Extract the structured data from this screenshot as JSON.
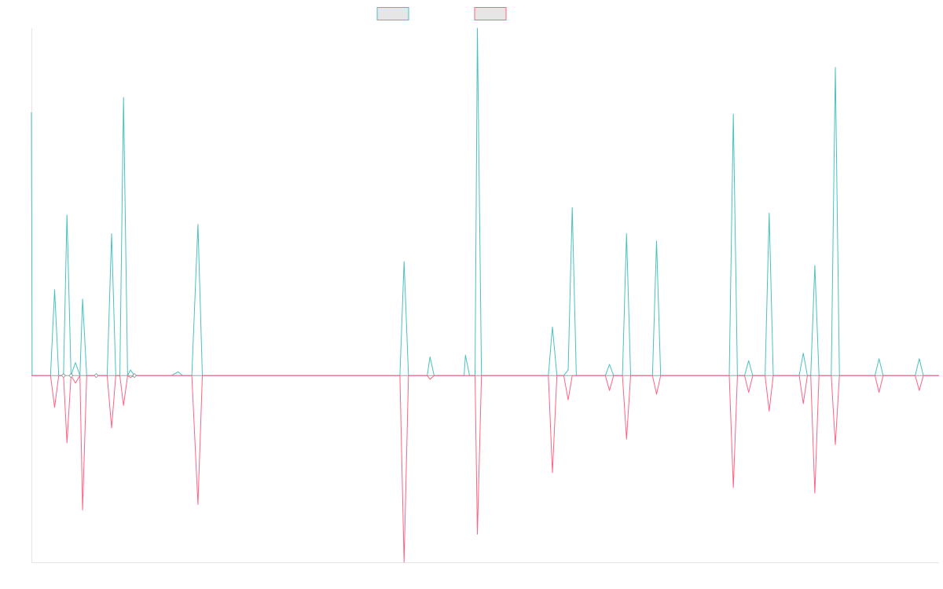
{
  "chart_data": {
    "type": "line",
    "title": "",
    "xlabel": "",
    "ylabel": "",
    "grid": false,
    "legend": "top-center",
    "ylim": [
      -1.0,
      1.86
    ],
    "series": [
      {
        "name": "",
        "color": "#4bc0c0",
        "fill": "#e6e6e6",
        "points": [
          [
            0,
            1.41
          ],
          [
            2,
            0
          ],
          [
            56,
            0
          ],
          [
            68,
            0.46
          ],
          [
            80,
            0
          ],
          [
            94,
            0
          ],
          [
            104,
            0.86
          ],
          [
            116,
            0
          ],
          [
            129,
            0.07
          ],
          [
            142,
            0
          ],
          [
            150,
            0.41
          ],
          [
            162,
            0
          ],
          [
            172,
            0
          ],
          [
            186,
            0
          ],
          [
            190,
            0
          ],
          [
            222,
            0
          ],
          [
            235,
            0.76
          ],
          [
            247,
            0
          ],
          [
            259,
            0
          ],
          [
            270,
            1.49
          ],
          [
            282,
            0
          ],
          [
            290,
            0.03
          ],
          [
            302,
            0
          ],
          [
            383,
            0
          ],
          [
            410,
            0
          ],
          [
            430,
            0.02
          ],
          [
            443,
            0
          ],
          [
            470,
            0
          ],
          [
            488,
            0.81
          ],
          [
            501,
            0
          ],
          [
            1080,
            0
          ],
          [
            1092,
            0.61
          ],
          [
            1105,
            0
          ],
          [
            1160,
            0
          ],
          [
            1168,
            0.1
          ],
          [
            1180,
            0
          ],
          [
            1268,
            0
          ],
          [
            1272,
            0.11
          ],
          [
            1284,
            0
          ],
          [
            1300,
            0
          ],
          [
            1307,
            1.86
          ],
          [
            1319,
            0
          ],
          [
            1515,
            0
          ],
          [
            1527,
            0.26
          ],
          [
            1540,
            0
          ],
          [
            1560,
            0
          ],
          [
            1573,
            0.03
          ],
          [
            1585,
            0.9
          ],
          [
            1597,
            0
          ],
          [
            1682,
            0
          ],
          [
            1694,
            0.06
          ],
          [
            1706,
            0
          ],
          [
            1732,
            0
          ],
          [
            1744,
            0.76
          ],
          [
            1756,
            0
          ],
          [
            1820,
            0
          ],
          [
            1832,
            0.72
          ],
          [
            1844,
            0
          ],
          [
            2045,
            0
          ],
          [
            2057,
            1.4
          ],
          [
            2069,
            0
          ],
          [
            2090,
            0
          ],
          [
            2102,
            0.08
          ],
          [
            2114,
            0
          ],
          [
            2150,
            0
          ],
          [
            2162,
            0.87
          ],
          [
            2174,
            0
          ],
          [
            2250,
            0
          ],
          [
            2262,
            0.12
          ],
          [
            2274,
            0
          ],
          [
            2284,
            0
          ],
          [
            2296,
            0.59
          ],
          [
            2308,
            0
          ],
          [
            2344,
            0
          ],
          [
            2356,
            1.65
          ],
          [
            2368,
            0
          ],
          [
            2472,
            0
          ],
          [
            2484,
            0.09
          ],
          [
            2496,
            0
          ],
          [
            2590,
            0
          ],
          [
            2602,
            0.09
          ],
          [
            2614,
            0
          ],
          [
            2660,
            0
          ]
        ]
      },
      {
        "name": "",
        "color": "#ff6384",
        "fill": "#e6e6e6",
        "points": [
          [
            0,
            0
          ],
          [
            56,
            0
          ],
          [
            68,
            -0.17
          ],
          [
            80,
            0
          ],
          [
            94,
            0
          ],
          [
            104,
            -0.36
          ],
          [
            116,
            0
          ],
          [
            129,
            -0.04
          ],
          [
            142,
            0
          ],
          [
            150,
            -0.72
          ],
          [
            162,
            0
          ],
          [
            172,
            0
          ],
          [
            186,
            0
          ],
          [
            190,
            0
          ],
          [
            222,
            0
          ],
          [
            235,
            -0.28
          ],
          [
            247,
            0
          ],
          [
            259,
            0
          ],
          [
            270,
            -0.16
          ],
          [
            282,
            0
          ],
          [
            290,
            -0.01
          ],
          [
            302,
            0
          ],
          [
            383,
            0
          ],
          [
            410,
            0
          ],
          [
            430,
            0
          ],
          [
            443,
            0
          ],
          [
            470,
            0
          ],
          [
            488,
            -0.69
          ],
          [
            501,
            0
          ],
          [
            1080,
            0
          ],
          [
            1092,
            -1.0
          ],
          [
            1105,
            0
          ],
          [
            1160,
            0
          ],
          [
            1168,
            -0.02
          ],
          [
            1180,
            0
          ],
          [
            1268,
            0
          ],
          [
            1272,
            0
          ],
          [
            1284,
            0
          ],
          [
            1300,
            0
          ],
          [
            1307,
            -0.85
          ],
          [
            1319,
            0
          ],
          [
            1515,
            0
          ],
          [
            1527,
            -0.52
          ],
          [
            1540,
            0
          ],
          [
            1560,
            0
          ],
          [
            1573,
            -0.13
          ],
          [
            1585,
            0
          ],
          [
            1597,
            0
          ],
          [
            1682,
            0
          ],
          [
            1694,
            -0.08
          ],
          [
            1706,
            0
          ],
          [
            1732,
            0
          ],
          [
            1744,
            -0.34
          ],
          [
            1756,
            0
          ],
          [
            1820,
            0
          ],
          [
            1832,
            -0.1
          ],
          [
            1844,
            0
          ],
          [
            2045,
            0
          ],
          [
            2057,
            -0.6
          ],
          [
            2069,
            0
          ],
          [
            2090,
            0
          ],
          [
            2102,
            -0.09
          ],
          [
            2114,
            0
          ],
          [
            2150,
            0
          ],
          [
            2162,
            -0.19
          ],
          [
            2174,
            0
          ],
          [
            2250,
            0
          ],
          [
            2262,
            -0.15
          ],
          [
            2274,
            0
          ],
          [
            2284,
            0
          ],
          [
            2296,
            -0.63
          ],
          [
            2308,
            0
          ],
          [
            2344,
            0
          ],
          [
            2356,
            -0.37
          ],
          [
            2368,
            0
          ],
          [
            2472,
            0
          ],
          [
            2484,
            -0.09
          ],
          [
            2496,
            0
          ],
          [
            2590,
            0
          ],
          [
            2602,
            -0.08
          ],
          [
            2614,
            0
          ],
          [
            2660,
            0
          ]
        ]
      }
    ]
  }
}
